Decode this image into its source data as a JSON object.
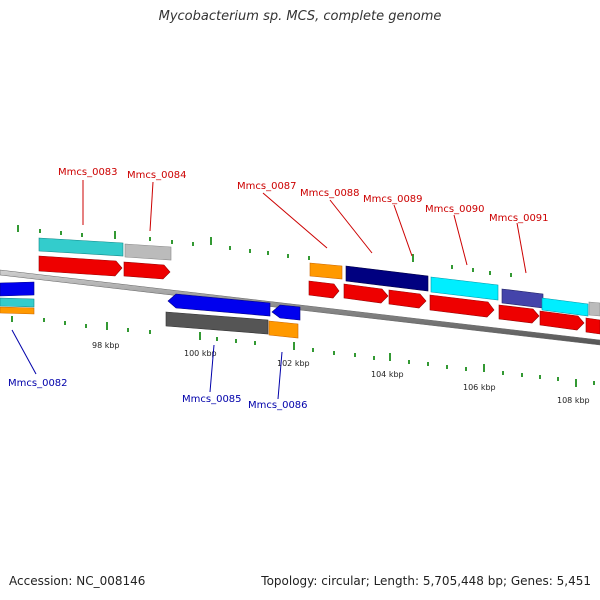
{
  "title": "Mycobacterium sp. MCS, complete genome",
  "footer": {
    "accession_label": "Accession:",
    "accession": "NC_008146",
    "topology_label": "Topology:",
    "topology": "circular",
    "length_label": "Length:",
    "length": "5,705,448 bp",
    "genes_label": "Genes:",
    "genes": "5,451"
  },
  "colors": {
    "forward_label": "#cc0000",
    "reverse_label": "#0000aa",
    "backbone": "#888888",
    "tick": "#339933",
    "orange": "#ff9900",
    "cyan": "#33cccc",
    "light_gray": "#bbbbbb",
    "red": "#ee0000",
    "blue": "#0000ee",
    "navy": "#000080",
    "dark_gray": "#555555",
    "bright_cyan": "#00eeff",
    "slate_blue": "#4444aa"
  },
  "ticks": {
    "labels": [
      "98 kbp",
      "100 kbp",
      "102 kbp",
      "104 kbp",
      "106 kbp",
      "108 kbp"
    ]
  },
  "genes": [
    {
      "label": "Mmcs_0082",
      "strand": "reverse"
    },
    {
      "label": "Mmcs_0083",
      "strand": "forward"
    },
    {
      "label": "Mmcs_0084",
      "strand": "forward"
    },
    {
      "label": "Mmcs_0085",
      "strand": "reverse"
    },
    {
      "label": "Mmcs_0086",
      "strand": "reverse"
    },
    {
      "label": "Mmcs_0087",
      "strand": "forward"
    },
    {
      "label": "Mmcs_0088",
      "strand": "forward"
    },
    {
      "label": "Mmcs_0089",
      "strand": "forward"
    },
    {
      "label": "Mmcs_0090",
      "strand": "forward"
    },
    {
      "label": "Mmcs_0091",
      "strand": "forward"
    }
  ]
}
